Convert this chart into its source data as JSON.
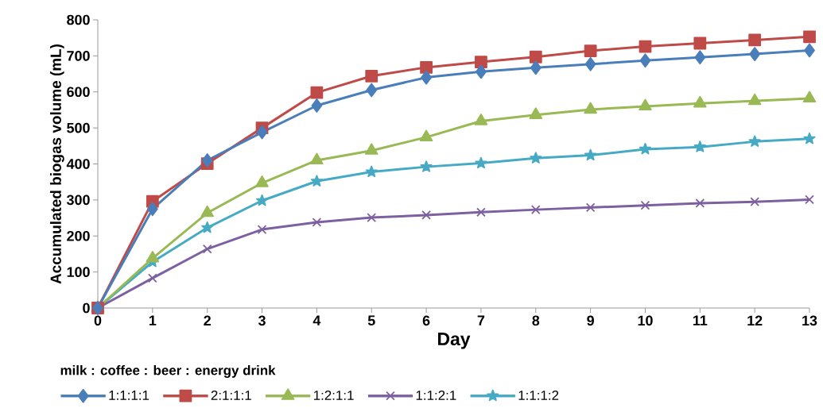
{
  "chart_data": {
    "type": "line",
    "xlabel": "Day",
    "ylabel": "Accumulated biogas volume (mL)",
    "legend_title": "milk : coffee : beer : energy drink",
    "x": [
      0,
      1,
      2,
      3,
      4,
      5,
      6,
      7,
      8,
      9,
      10,
      11,
      12,
      13
    ],
    "series": [
      {
        "name": "1:1:1:1",
        "color": "#4a7ebb",
        "marker": "diamond",
        "values": [
          0,
          275,
          410,
          488,
          562,
          605,
          640,
          656,
          667,
          677,
          687,
          696,
          705,
          715
        ]
      },
      {
        "name": "2:1:1:1",
        "color": "#be4b48",
        "marker": "square",
        "values": [
          0,
          296,
          401,
          500,
          598,
          644,
          668,
          683,
          697,
          714,
          726,
          735,
          744,
          753
        ]
      },
      {
        "name": "1:2:1:1",
        "color": "#98b954",
        "marker": "triangle",
        "values": [
          0,
          138,
          264,
          347,
          410,
          437,
          474,
          519,
          536,
          551,
          560,
          568,
          575,
          582
        ]
      },
      {
        "name": "1:1:2:1",
        "color": "#7d60a0",
        "marker": "cross",
        "values": [
          0,
          83,
          164,
          218,
          238,
          251,
          258,
          266,
          273,
          279,
          285,
          291,
          295,
          301
        ]
      },
      {
        "name": "1:1:1:2",
        "color": "#46aac5",
        "marker": "star",
        "values": [
          0,
          128,
          223,
          298,
          352,
          378,
          392,
          402,
          416,
          424,
          441,
          447,
          462,
          470
        ]
      }
    ],
    "xlim": [
      0,
      13
    ],
    "xticks": [
      0,
      1,
      2,
      3,
      4,
      5,
      6,
      7,
      8,
      9,
      10,
      11,
      12,
      13
    ],
    "ylim": [
      0,
      800
    ],
    "yticks": [
      0,
      100,
      200,
      300,
      400,
      500,
      600,
      700,
      800
    ],
    "grid": false,
    "legend": "bottom",
    "line_style": "solid"
  }
}
